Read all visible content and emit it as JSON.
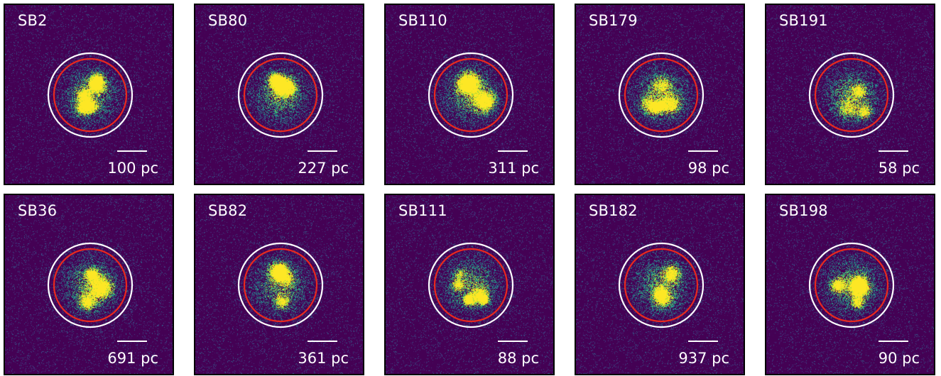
{
  "colors": {
    "background": "#440154",
    "outer_circle": "#ffffff",
    "inner_circle": "#e8281e",
    "text": "#ffffff"
  },
  "panels": [
    {
      "id": "SB2",
      "scale": "100 pc"
    },
    {
      "id": "SB80",
      "scale": "227 pc"
    },
    {
      "id": "SB110",
      "scale": "311 pc"
    },
    {
      "id": "SB179",
      "scale": "98 pc"
    },
    {
      "id": "SB191",
      "scale": "58 pc"
    },
    {
      "id": "SB36",
      "scale": "691 pc"
    },
    {
      "id": "SB82",
      "scale": "361 pc"
    },
    {
      "id": "SB111",
      "scale": "88 pc"
    },
    {
      "id": "SB182",
      "scale": "937 pc"
    },
    {
      "id": "SB198",
      "scale": "90 pc"
    }
  ]
}
